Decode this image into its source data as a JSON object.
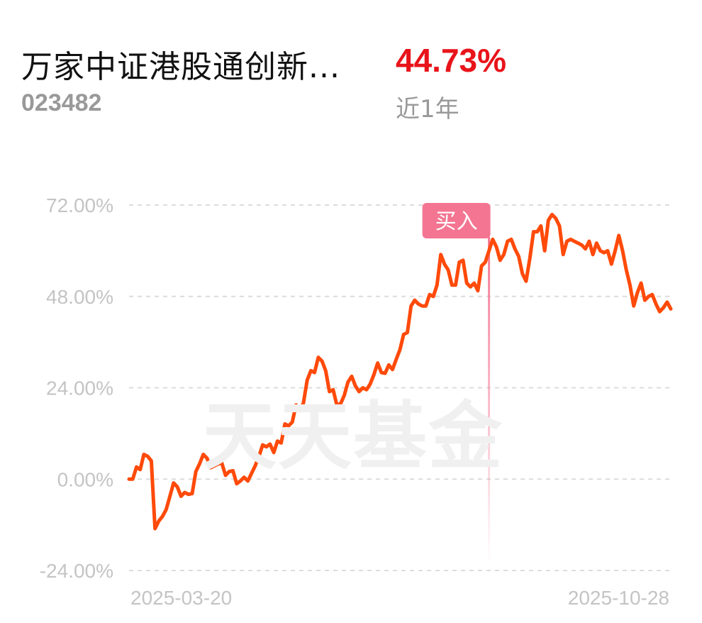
{
  "fund": {
    "name": "万家中证港股通创新...",
    "code": "023482",
    "return_value": "44.73%",
    "return_period": "近1年"
  },
  "watermark": "天天基金",
  "colors": {
    "line": "#ff4a0a",
    "buy_marker": "#f47592",
    "return_value": "#e8141a",
    "grid": "#dcdcdc",
    "axis_text": "#c4c4c4"
  },
  "chart_data": {
    "type": "line",
    "ylim": [
      -24,
      72
    ],
    "yticks": [
      72,
      48,
      24,
      0,
      -24
    ],
    "ytick_labels": [
      "72.00%",
      "48.00%",
      "24.00%",
      "0.00%",
      "-24.00%"
    ],
    "xtick_labels": [
      "2025-03-20",
      "2025-10-28"
    ],
    "x_start": "2025-03-20",
    "x_end": "2025-10-28",
    "grid": true,
    "annotation": {
      "label": "买入",
      "index": 97
    },
    "series": [
      {
        "values": [
          0.0,
          0.0,
          3.2,
          2.5,
          6.5,
          6.0,
          4.8,
          -13.0,
          -11.0,
          -9.8,
          -8.0,
          -4.5,
          -1.0,
          -2.0,
          -4.5,
          -3.5,
          -4.0,
          -3.8,
          2.0,
          4.0,
          6.5,
          5.5,
          3.0,
          3.5,
          4.0,
          4.2,
          1.0,
          2.0,
          2.2,
          -1.2,
          -0.5,
          0.5,
          -0.5,
          1.5,
          3.5,
          6.0,
          9.0,
          8.5,
          9.2,
          7.0,
          10.0,
          9.5,
          14.5,
          14.0,
          15.0,
          19.5,
          18.0,
          20.0,
          26.0,
          28.5,
          28.0,
          32.0,
          31.0,
          28.5,
          23.0,
          23.5,
          19.5,
          19.8,
          22.0,
          25.5,
          27.0,
          24.5,
          23.0,
          24.0,
          23.5,
          25.0,
          27.5,
          30.5,
          28.0,
          27.8,
          30.0,
          28.8,
          31.5,
          34.0,
          38.0,
          38.5,
          45.5,
          47.0,
          46.0,
          45.5,
          45.5,
          48.5,
          48.0,
          51.0,
          59.0,
          56.5,
          55.0,
          51.0,
          51.0,
          57.0,
          57.5,
          51.5,
          50.5,
          51.5,
          49.5,
          56.0,
          57.0,
          60.0,
          63.0,
          61.0,
          57.5,
          59.0,
          62.5,
          63.0,
          60.5,
          58.5,
          54.0,
          52.0,
          58.0,
          65.0,
          65.0,
          66.5,
          60.0,
          68.0,
          69.5,
          68.5,
          66.5,
          59.0,
          62.5,
          63.0,
          62.5,
          62.0,
          61.5,
          60.5,
          62.5,
          59.0,
          62.0,
          60.0,
          59.5,
          60.0,
          56.5,
          60.0,
          64.0,
          60.0,
          55.0,
          51.0,
          45.5,
          49.0,
          51.5,
          47.0,
          48.0,
          48.5,
          46.0,
          44.0,
          45.0,
          46.5,
          44.73
        ]
      }
    ]
  }
}
